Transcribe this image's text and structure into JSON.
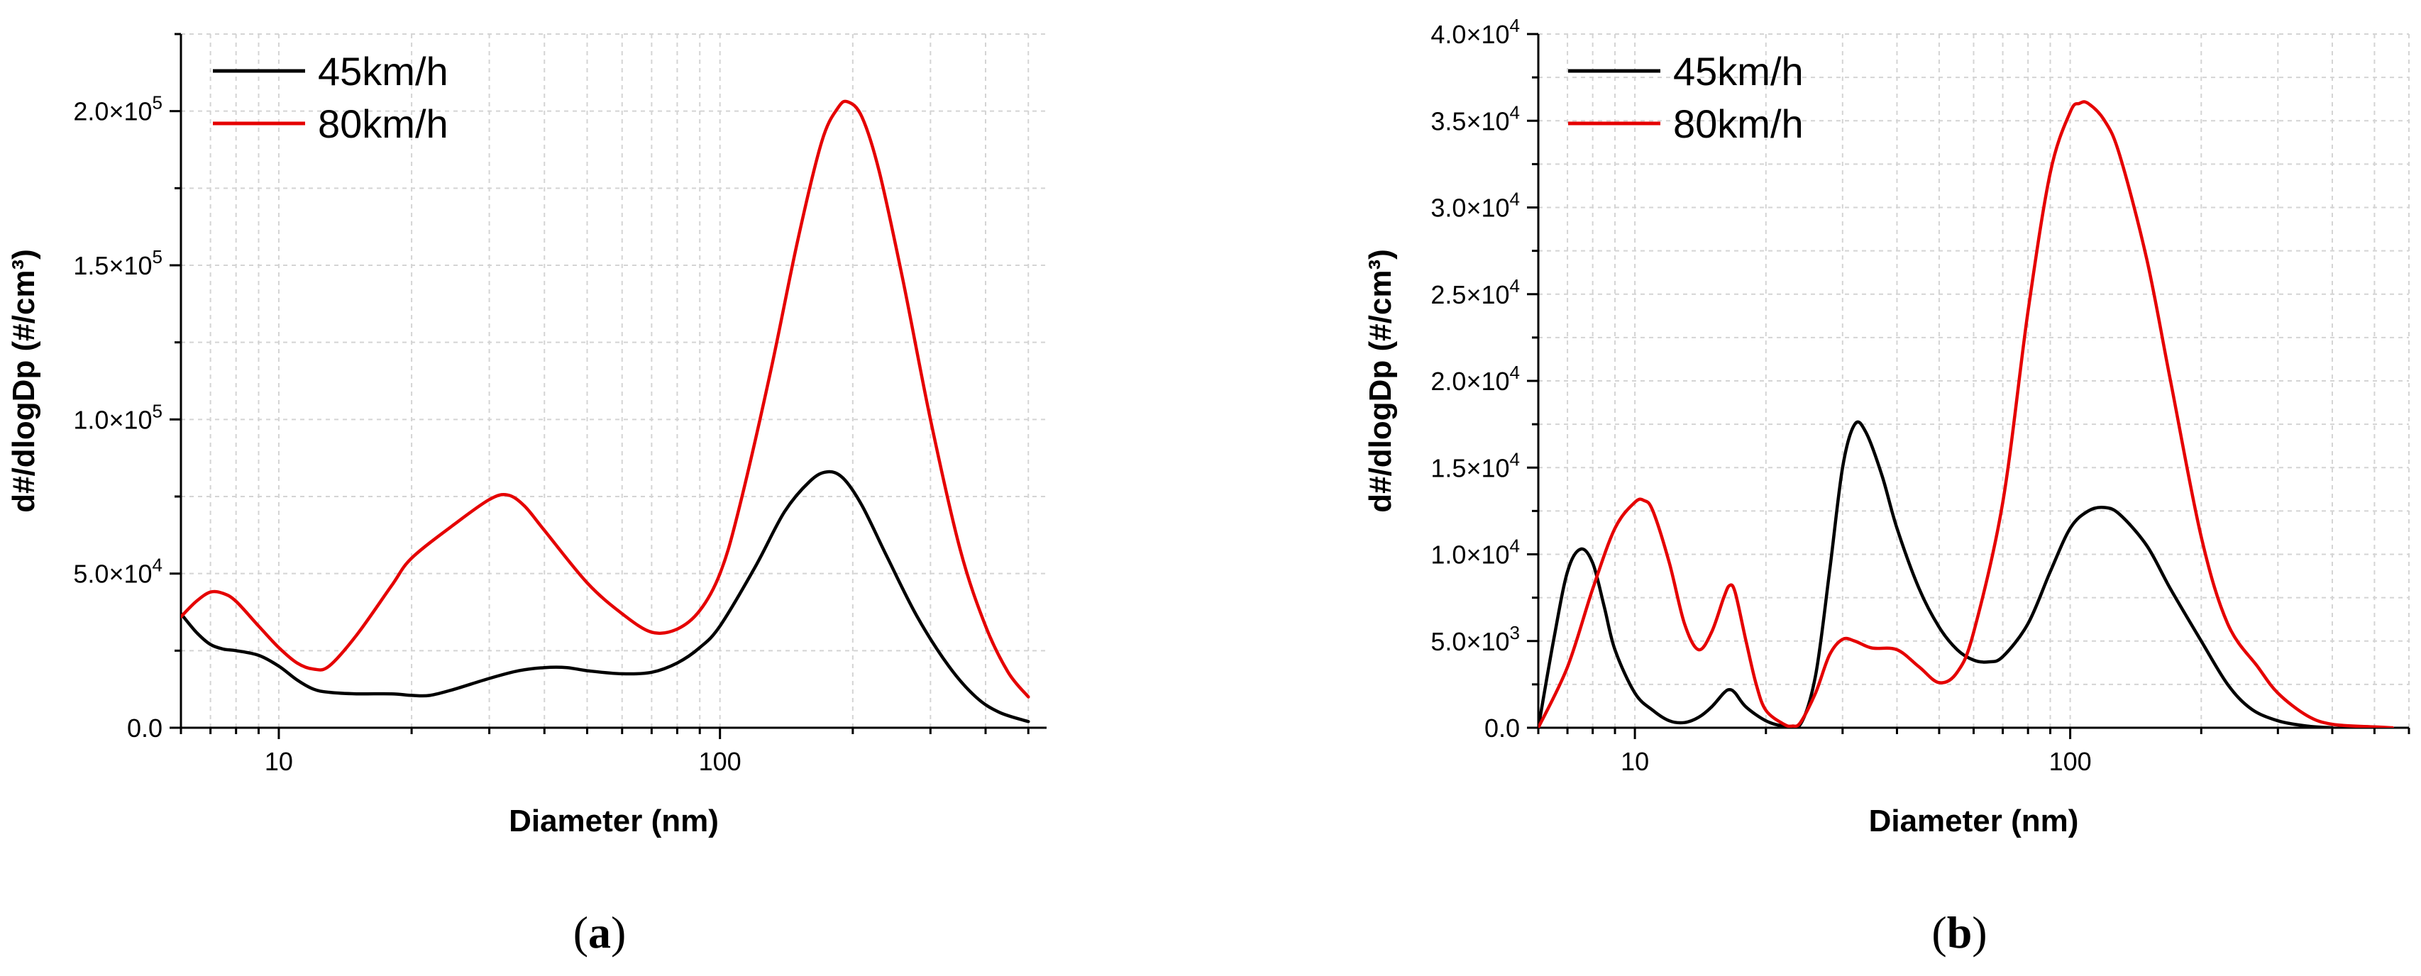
{
  "chart_data": [
    {
      "panel": "(a)",
      "panel_letter": "a",
      "type": "line",
      "xlabel": "Diameter (nm)",
      "ylabel": "d#/dlogDp (#/cm³)",
      "xscale": "log",
      "xlim": [
        6,
        550
      ],
      "ylim": [
        0,
        225000
      ],
      "grid": true,
      "legend_position": "top-left",
      "xticks": [
        {
          "value": 10,
          "label": "10"
        },
        {
          "value": 100,
          "label": "100"
        }
      ],
      "yticks": [
        {
          "value": 0,
          "mant": "0.0",
          "exp": ""
        },
        {
          "value": 50000,
          "mant": "5.0×10",
          "exp": "4"
        },
        {
          "value": 100000,
          "mant": "1.0×10",
          "exp": "5"
        },
        {
          "value": 150000,
          "mant": "1.5×10",
          "exp": "5"
        },
        {
          "value": 200000,
          "mant": "2.0×10",
          "exp": "5"
        }
      ],
      "series": [
        {
          "name": "45km/h",
          "color": "#000000",
          "points": [
            [
              6,
              37000
            ],
            [
              6.5,
              31000
            ],
            [
              7,
              27000
            ],
            [
              7.5,
              25500
            ],
            [
              8,
              25000
            ],
            [
              9,
              23500
            ],
            [
              10,
              20000
            ],
            [
              11,
              15500
            ],
            [
              12,
              12500
            ],
            [
              13,
              11500
            ],
            [
              15,
              11000
            ],
            [
              18,
              11000
            ],
            [
              20,
              10500
            ],
            [
              22,
              10500
            ],
            [
              25,
              12500
            ],
            [
              30,
              16000
            ],
            [
              35,
              18500
            ],
            [
              40,
              19500
            ],
            [
              45,
              19500
            ],
            [
              50,
              18500
            ],
            [
              60,
              17500
            ],
            [
              70,
              18000
            ],
            [
              80,
              21000
            ],
            [
              90,
              26000
            ],
            [
              100,
              33000
            ],
            [
              120,
              52000
            ],
            [
              140,
              70000
            ],
            [
              160,
              80000
            ],
            [
              175,
              83000
            ],
            [
              190,
              81000
            ],
            [
              210,
              72000
            ],
            [
              240,
              55000
            ],
            [
              280,
              36000
            ],
            [
              330,
              20000
            ],
            [
              380,
              10000
            ],
            [
              430,
              5000
            ],
            [
              500,
              2000
            ]
          ]
        },
        {
          "name": "80km/h",
          "color": "#e50000",
          "points": [
            [
              6,
              36000
            ],
            [
              6.5,
              41000
            ],
            [
              7,
              44000
            ],
            [
              7.5,
              43500
            ],
            [
              8,
              41000
            ],
            [
              9,
              33000
            ],
            [
              10,
              26000
            ],
            [
              11,
              21000
            ],
            [
              12,
              19000
            ],
            [
              13,
              20000
            ],
            [
              15,
              30000
            ],
            [
              18,
              46000
            ],
            [
              20,
              55000
            ],
            [
              25,
              66000
            ],
            [
              30,
              74000
            ],
            [
              33,
              75500
            ],
            [
              36,
              72000
            ],
            [
              40,
              64000
            ],
            [
              50,
              47000
            ],
            [
              60,
              37000
            ],
            [
              70,
              31000
            ],
            [
              80,
              32000
            ],
            [
              90,
              38000
            ],
            [
              100,
              50000
            ],
            [
              110,
              70000
            ],
            [
              130,
              115000
            ],
            [
              150,
              158000
            ],
            [
              170,
              190000
            ],
            [
              185,
              201000
            ],
            [
              195,
              203000
            ],
            [
              210,
              198000
            ],
            [
              230,
              180000
            ],
            [
              260,
              145000
            ],
            [
              300,
              100000
            ],
            [
              350,
              58000
            ],
            [
              400,
              33000
            ],
            [
              450,
              18000
            ],
            [
              500,
              10000
            ]
          ]
        }
      ]
    },
    {
      "panel": "(b)",
      "panel_letter": "b",
      "type": "line",
      "xlabel": "Diameter (nm)",
      "ylabel": "d#/dlogDp (#/cm³)",
      "xscale": "log",
      "xlim": [
        6,
        600
      ],
      "ylim": [
        0,
        40000
      ],
      "grid": true,
      "legend_position": "top-left",
      "xticks": [
        {
          "value": 10,
          "label": "10"
        },
        {
          "value": 100,
          "label": "100"
        }
      ],
      "yticks": [
        {
          "value": 0,
          "mant": "0.0",
          "exp": ""
        },
        {
          "value": 5000,
          "mant": "5.0×10",
          "exp": "3"
        },
        {
          "value": 10000,
          "mant": "1.0×10",
          "exp": "4"
        },
        {
          "value": 15000,
          "mant": "1.5×10",
          "exp": "4"
        },
        {
          "value": 20000,
          "mant": "2.0×10",
          "exp": "4"
        },
        {
          "value": 25000,
          "mant": "2.5×10",
          "exp": "4"
        },
        {
          "value": 30000,
          "mant": "3.0×10",
          "exp": "4"
        },
        {
          "value": 35000,
          "mant": "3.5×10",
          "exp": "4"
        },
        {
          "value": 40000,
          "mant": "4.0×10",
          "exp": "4"
        }
      ],
      "series": [
        {
          "name": "45km/h",
          "color": "#000000",
          "points": [
            [
              6,
              0
            ],
            [
              6.5,
              5000
            ],
            [
              7,
              9000
            ],
            [
              7.5,
              10300
            ],
            [
              8,
              9500
            ],
            [
              8.5,
              7000
            ],
            [
              9,
              4500
            ],
            [
              10,
              2000
            ],
            [
              11,
              1000
            ],
            [
              12,
              400
            ],
            [
              13,
              300
            ],
            [
              14,
              600
            ],
            [
              15,
              1200
            ],
            [
              16,
              2000
            ],
            [
              16.5,
              2200
            ],
            [
              17,
              2000
            ],
            [
              18,
              1200
            ],
            [
              20,
              400
            ],
            [
              22,
              100
            ],
            [
              24,
              200
            ],
            [
              26,
              3000
            ],
            [
              28,
              9000
            ],
            [
              30,
              15000
            ],
            [
              32,
              17500
            ],
            [
              34,
              17000
            ],
            [
              37,
              14500
            ],
            [
              40,
              11500
            ],
            [
              45,
              8000
            ],
            [
              50,
              5800
            ],
            [
              55,
              4500
            ],
            [
              60,
              3900
            ],
            [
              65,
              3800
            ],
            [
              70,
              4100
            ],
            [
              80,
              6000
            ],
            [
              90,
              9000
            ],
            [
              100,
              11500
            ],
            [
              110,
              12500
            ],
            [
              120,
              12700
            ],
            [
              130,
              12300
            ],
            [
              150,
              10500
            ],
            [
              170,
              8000
            ],
            [
              200,
              5000
            ],
            [
              230,
              2500
            ],
            [
              260,
              1100
            ],
            [
              300,
              400
            ],
            [
              350,
              100
            ],
            [
              400,
              0
            ]
          ]
        },
        {
          "name": "80km/h",
          "color": "#e50000",
          "points": [
            [
              6,
              0
            ],
            [
              7,
              3500
            ],
            [
              8,
              8000
            ],
            [
              9,
              11500
            ],
            [
              10,
              13000
            ],
            [
              10.5,
              13100
            ],
            [
              11,
              12500
            ],
            [
              12,
              9500
            ],
            [
              13,
              6000
            ],
            [
              14,
              4500
            ],
            [
              15,
              5500
            ],
            [
              16,
              7500
            ],
            [
              16.5,
              8200
            ],
            [
              17,
              7800
            ],
            [
              18,
              5000
            ],
            [
              19,
              2500
            ],
            [
              20,
              1000
            ],
            [
              22,
              200
            ],
            [
              23,
              100
            ],
            [
              24,
              300
            ],
            [
              26,
              2000
            ],
            [
              28,
              4200
            ],
            [
              30,
              5100
            ],
            [
              32,
              5000
            ],
            [
              35,
              4600
            ],
            [
              40,
              4500
            ],
            [
              45,
              3500
            ],
            [
              50,
              2600
            ],
            [
              55,
              3200
            ],
            [
              60,
              5500
            ],
            [
              70,
              13000
            ],
            [
              80,
              24000
            ],
            [
              90,
              32000
            ],
            [
              100,
              35500
            ],
            [
              105,
              36000
            ],
            [
              110,
              36000
            ],
            [
              120,
              35000
            ],
            [
              130,
              33000
            ],
            [
              150,
              27000
            ],
            [
              170,
              20000
            ],
            [
              200,
              11000
            ],
            [
              230,
              6000
            ],
            [
              270,
              3500
            ],
            [
              300,
              2000
            ],
            [
              350,
              700
            ],
            [
              400,
              200
            ],
            [
              500,
              50
            ],
            [
              550,
              0
            ]
          ]
        }
      ]
    }
  ]
}
